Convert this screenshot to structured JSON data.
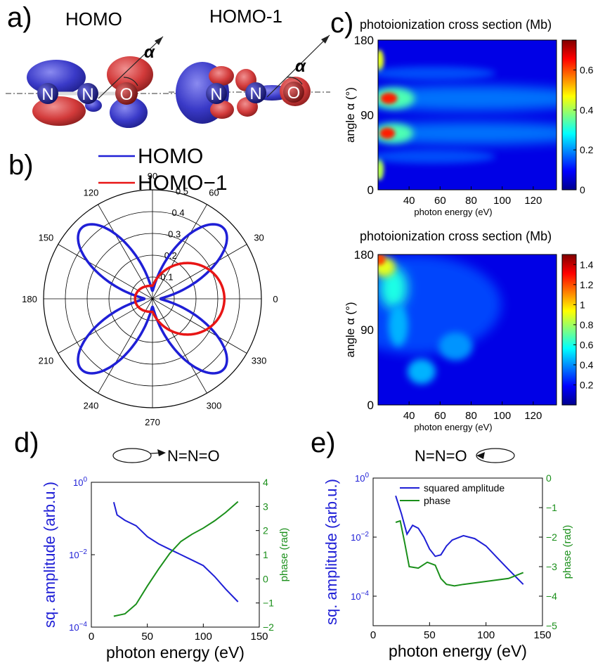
{
  "panels": {
    "a": {
      "letter": "a)",
      "labels": [
        "HOMO",
        "HOMO-1"
      ],
      "atoms": [
        "N",
        "N",
        "O"
      ],
      "angle_symbol": "α"
    },
    "b": {
      "letter": "b)"
    },
    "c": {
      "letter": "c)"
    },
    "d": {
      "letter": "d)",
      "molecule": "N=N=O"
    },
    "e": {
      "letter": "e)",
      "molecule": "N=N=O"
    }
  },
  "chart_data": [
    {
      "id": "b",
      "type": "polar",
      "legend": [
        "HOMO",
        "HOMO−1"
      ],
      "legend_placement": "top",
      "series": [
        {
          "name": "HOMO",
          "color": "#1f1fd6",
          "shape": "four-lobe",
          "lobe_angles_deg": [
            45,
            135,
            225,
            315
          ],
          "max_r": 0.46
        },
        {
          "name": "HOMO−1",
          "color": "#e81515",
          "shape": "dipole",
          "lobe_angles_deg": [
            0,
            180
          ],
          "r_at_0": 0.33,
          "r_at_180": 0.06
        }
      ],
      "radial_ticks": [
        "0.1",
        "0.2",
        "0.3",
        "0.4",
        "0.5"
      ],
      "radial_max": 0.5,
      "angle_labels": [
        "0",
        "30",
        "60",
        "90",
        "120",
        "150",
        "180",
        "210",
        "240",
        "270",
        "300",
        "330"
      ]
    },
    {
      "id": "c-top",
      "type": "heatmap",
      "title": "photoionization cross section (Mb)",
      "xlabel": "photon energy (eV)",
      "ylabel": "angle α (°)",
      "xlim": [
        20,
        135
      ],
      "ylim": [
        0,
        180
      ],
      "xticks": [
        "40",
        "60",
        "80",
        "100",
        "120"
      ],
      "yticks": [
        "0",
        "90",
        "180"
      ],
      "colorbar_ticks": [
        "0",
        "0.2",
        "0.4",
        "0.6"
      ],
      "clim": [
        0,
        0.75
      ],
      "colormap": "jet",
      "features": [
        {
          "energy": 27,
          "angle": 110,
          "value": 0.65
        },
        {
          "energy": 26,
          "angle": 68,
          "value": 0.65
        },
        {
          "energy": 21,
          "angle": 155,
          "value": 0.5
        },
        {
          "energy": 21,
          "angle": 25,
          "value": 0.5
        }
      ]
    },
    {
      "id": "c-bottom",
      "type": "heatmap",
      "title": "photoionization cross section (Mb)",
      "xlabel": "photon energy (eV)",
      "ylabel": "angle α (°)",
      "xlim": [
        20,
        135
      ],
      "ylim": [
        0,
        180
      ],
      "xticks": [
        "40",
        "60",
        "80",
        "100",
        "120"
      ],
      "yticks": [
        "0",
        "90",
        "180"
      ],
      "colorbar_ticks": [
        "0.2",
        "0.4",
        "0.6",
        "0.8",
        "1",
        "1.2",
        "1.4"
      ],
      "clim": [
        0,
        1.5
      ],
      "colormap": "jet",
      "features": [
        {
          "energy": 21,
          "angle": 172,
          "value": 1.3
        },
        {
          "energy": 30,
          "angle": 140,
          "value": 0.6
        }
      ]
    },
    {
      "id": "d",
      "type": "line",
      "xlabel": "photon energy (eV)",
      "ylabel": "sq. amplitude (arb.u.)",
      "y2label": "phase (rad)",
      "xlim": [
        0,
        150
      ],
      "ylim": [
        -4,
        0
      ],
      "yscale": "log",
      "y2lim": [
        -2,
        4
      ],
      "xticks": [
        0,
        50,
        100,
        150
      ],
      "yticks": [
        -4,
        -2,
        0
      ],
      "y2ticks": [
        -2,
        -1,
        0,
        1,
        2,
        3,
        4
      ],
      "series": [
        {
          "axis": "left",
          "color": "#1f1fd6",
          "x": [
            20,
            23,
            30,
            40,
            50,
            60,
            70,
            80,
            90,
            100,
            110,
            120,
            131
          ],
          "y": [
            -0.55,
            -0.9,
            -1.05,
            -1.2,
            -1.5,
            -1.7,
            -1.85,
            -2.0,
            -2.15,
            -2.3,
            -2.6,
            -2.95,
            -3.3
          ]
        },
        {
          "axis": "right",
          "color": "#1a8f1a",
          "x": [
            20,
            25,
            30,
            35,
            40,
            50,
            60,
            70,
            80,
            90,
            100,
            110,
            120,
            131
          ],
          "y": [
            -1.55,
            -1.5,
            -1.45,
            -1.25,
            -1.05,
            -0.3,
            0.4,
            1.05,
            1.55,
            1.85,
            2.1,
            2.4,
            2.75,
            3.2
          ]
        }
      ]
    },
    {
      "id": "e",
      "type": "line",
      "xlabel": "photon energy (eV)",
      "ylabel": "sq. amplitude (arb.u.)",
      "y2label": "phase (rad)",
      "legend": [
        "squared amplitude",
        "phase"
      ],
      "legend_placement": "top-right",
      "xlim": [
        0,
        150
      ],
      "ylim": [
        -5,
        0
      ],
      "yscale": "log",
      "y2lim": [
        -5,
        0
      ],
      "xticks": [
        0,
        50,
        100,
        150
      ],
      "yticks": [
        -4,
        -2,
        0
      ],
      "y2ticks": [
        -5,
        -4,
        -3,
        -2,
        -1,
        0
      ],
      "series": [
        {
          "name": "squared amplitude",
          "axis": "left",
          "color": "#1f1fd6",
          "x": [
            20,
            25,
            30,
            35,
            40,
            45,
            50,
            55,
            60,
            65,
            70,
            80,
            90,
            100,
            110,
            120,
            133
          ],
          "y": [
            -0.6,
            -1.2,
            -1.9,
            -1.6,
            -1.7,
            -2.0,
            -2.4,
            -2.65,
            -2.6,
            -2.3,
            -2.1,
            -1.95,
            -2.05,
            -2.3,
            -2.7,
            -3.1,
            -3.6
          ]
        },
        {
          "name": "phase",
          "axis": "right",
          "color": "#1a8f1a",
          "x": [
            20,
            24,
            28,
            32,
            40,
            48,
            55,
            60,
            65,
            72,
            80,
            90,
            100,
            110,
            120,
            133
          ],
          "y": [
            -1.5,
            -1.45,
            -2.2,
            -3.0,
            -3.05,
            -2.85,
            -2.95,
            -3.4,
            -3.6,
            -3.65,
            -3.6,
            -3.55,
            -3.5,
            -3.45,
            -3.4,
            -3.2
          ]
        }
      ]
    }
  ]
}
